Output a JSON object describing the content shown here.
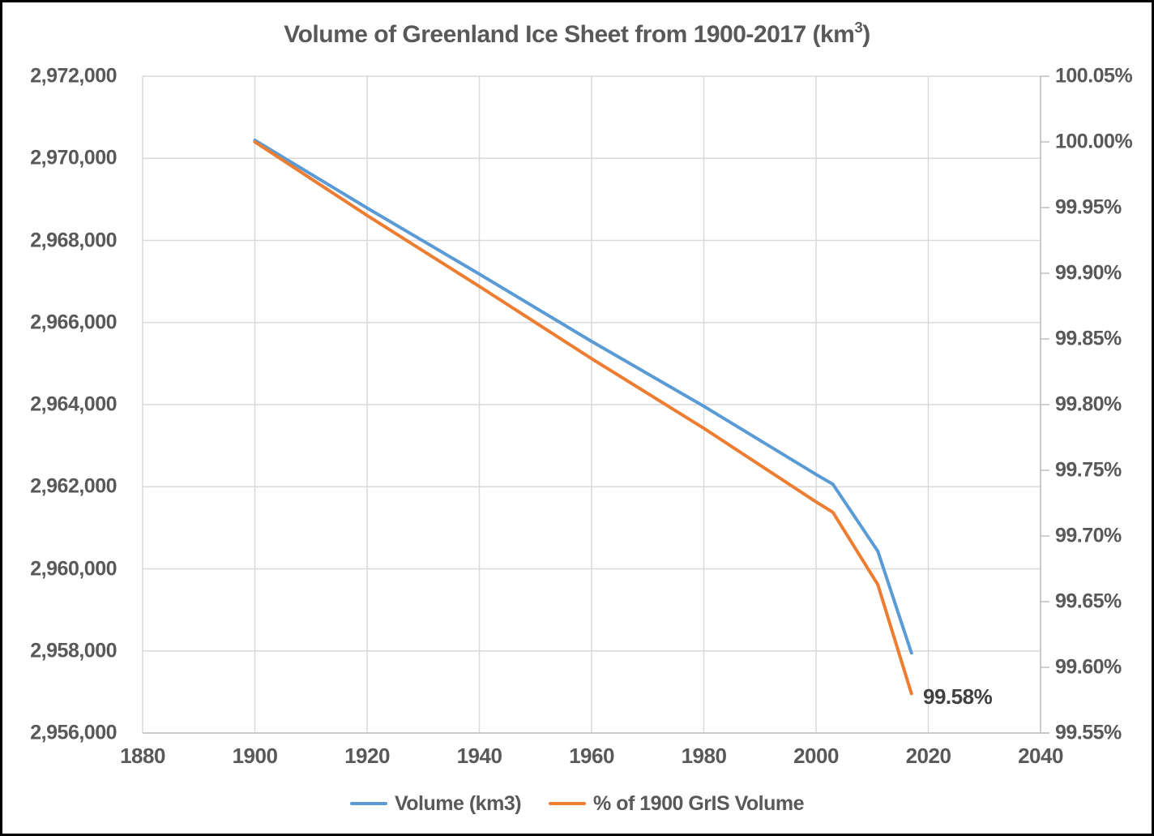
{
  "texts": {
    "title_prefix": "Volume of Greenland Ice Sheet from 1900-2017 (km",
    "title_sup": "3",
    "title_suffix": ")"
  },
  "colors": {
    "volume_line": "#5B9BD5",
    "pct_line": "#ED7D31",
    "axis_text": "#595959",
    "gridline": "#D9D9D9",
    "axis_line": "#BFBFBF",
    "annotation_text": "#404040",
    "border": "#000000",
    "background": "#FFFFFF"
  },
  "chart_data": {
    "type": "line",
    "title": "Volume of Greenland Ice Sheet from 1900-2017 (km³)",
    "x": [
      1900,
      1920,
      1940,
      1960,
      1980,
      2000,
      2003,
      2011,
      2017
    ],
    "series": [
      {
        "name": "Volume (km3)",
        "axis": "left",
        "color": "#5B9BD5",
        "values": [
          2970440,
          2968790,
          2967180,
          2965540,
          2963960,
          2962300,
          2962060,
          2960430,
          2957950
        ]
      },
      {
        "name": "% of 1900 GrIS Volume",
        "axis": "right",
        "color": "#ED7D31",
        "values": [
          100.0,
          99.944,
          99.89,
          99.835,
          99.782,
          99.726,
          99.718,
          99.663,
          99.58
        ]
      }
    ],
    "x_axis": {
      "min": 1880,
      "max": 2040,
      "tick_step": 20,
      "tick_labels": [
        "1880",
        "1900",
        "1920",
        "1940",
        "1960",
        "1980",
        "2000",
        "2020",
        "2040"
      ]
    },
    "y_axis_left": {
      "min": 2956000,
      "max": 2972000,
      "tick_step": 2000,
      "tick_labels": [
        "2,972,000",
        "2,970,000",
        "2,968,000",
        "2,966,000",
        "2,964,000",
        "2,962,000",
        "2,960,000",
        "2,958,000",
        "2,956,000"
      ]
    },
    "y_axis_right": {
      "min": 99.55,
      "max": 100.05,
      "tick_step": 0.05,
      "tick_labels": [
        "100.05%",
        "100.00%",
        "99.95%",
        "99.90%",
        "99.85%",
        "99.80%",
        "99.75%",
        "99.70%",
        "99.65%",
        "99.60%",
        "99.55%"
      ]
    },
    "annotation": {
      "text": "99.58%",
      "series": "% of 1900 GrIS Volume",
      "x": 2017,
      "y": 99.58
    },
    "grid": true,
    "legend_position": "bottom"
  }
}
